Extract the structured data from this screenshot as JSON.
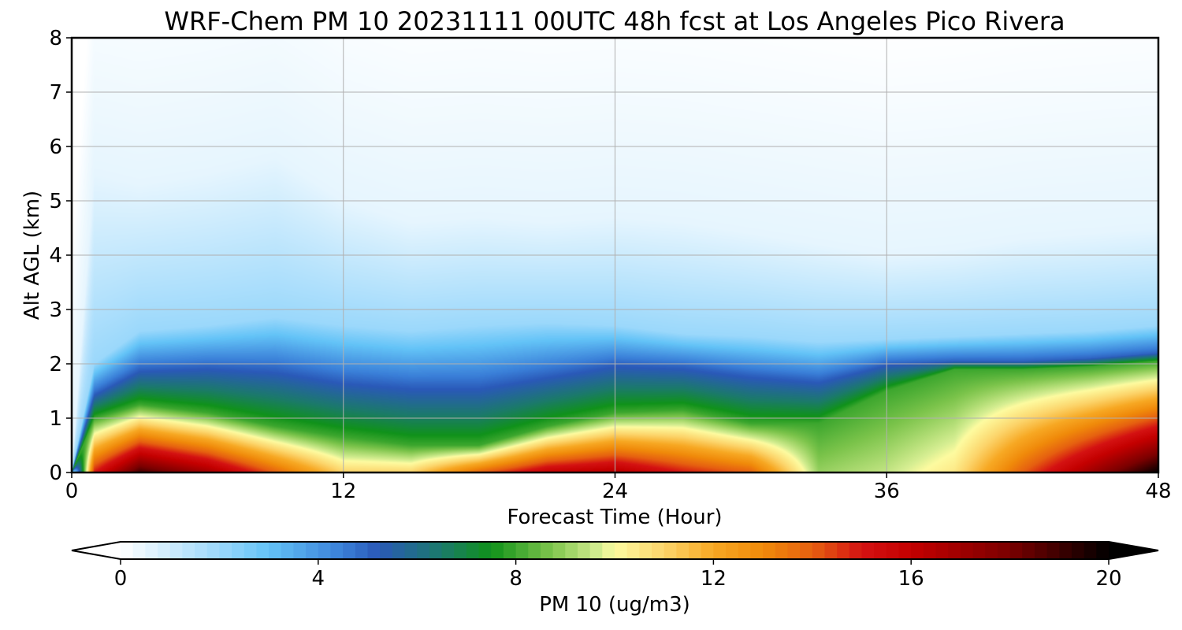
{
  "chart_data": {
    "type": "heatmap",
    "title": "WRF-Chem PM 10  20231111 00UTC 48h fcst at Los Angeles Pico Rivera",
    "xlabel": "Forecast Time (Hour)",
    "ylabel": "Alt AGL (km)",
    "xlim": [
      0,
      48
    ],
    "ylim": [
      0,
      8
    ],
    "xticks": [
      "0",
      "12",
      "24",
      "36",
      "48"
    ],
    "yticks": [
      "0",
      "1",
      "2",
      "3",
      "4",
      "5",
      "6",
      "7",
      "8"
    ],
    "grid": true,
    "colorbar": {
      "label": "PM 10  (ug/m3)",
      "range": [
        0,
        20
      ],
      "ticks": [
        "0",
        "4",
        "8",
        "12",
        "16",
        "20"
      ],
      "extend": "both",
      "stops": [
        {
          "v": 0,
          "c": "#ffffff"
        },
        {
          "v": 2,
          "c": "#9bd8fb"
        },
        {
          "v": 3,
          "c": "#63c3f7"
        },
        {
          "v": 4.5,
          "c": "#3a7fd8"
        },
        {
          "v": 5.2,
          "c": "#2a59b8"
        },
        {
          "v": 6.5,
          "c": "#1b7a6a"
        },
        {
          "v": 7.5,
          "c": "#10921a"
        },
        {
          "v": 8.7,
          "c": "#7cc44b"
        },
        {
          "v": 9.7,
          "c": "#d6ee92"
        },
        {
          "v": 10,
          "c": "#fdfba0"
        },
        {
          "v": 11,
          "c": "#fcd46a"
        },
        {
          "v": 12,
          "c": "#f7a823"
        },
        {
          "v": 13,
          "c": "#f08a0a"
        },
        {
          "v": 14,
          "c": "#e66010"
        },
        {
          "v": 15,
          "c": "#d41212"
        },
        {
          "v": 16,
          "c": "#c40000"
        },
        {
          "v": 18,
          "c": "#7a0000"
        },
        {
          "v": 20,
          "c": "#000000"
        }
      ]
    },
    "profiles": [
      {
        "t": 0,
        "surf": 0,
        "z8": 0,
        "z5": 0,
        "z2": 0,
        "ztop": 0
      },
      {
        "t": 1,
        "surf": 15,
        "z8": 1.0,
        "z5": 1.45,
        "z2": 2.0,
        "ztop": 5.5
      },
      {
        "t": 3,
        "surf": 19,
        "z8": 1.25,
        "z5": 1.9,
        "z2": 2.6,
        "ztop": 5.3
      },
      {
        "t": 6,
        "surf": 17,
        "z8": 1.1,
        "z5": 1.95,
        "z2": 2.7,
        "ztop": 5.5
      },
      {
        "t": 9,
        "surf": 14,
        "z8": 0.85,
        "z5": 1.9,
        "z2": 2.85,
        "ztop": 5.8
      },
      {
        "t": 12,
        "surf": 11,
        "z8": 0.65,
        "z5": 1.7,
        "z2": 2.7,
        "ztop": 5.0
      },
      {
        "t": 15,
        "surf": 11,
        "z8": 0.5,
        "z5": 1.6,
        "z2": 2.6,
        "ztop": 4.6
      },
      {
        "t": 18,
        "surf": 14,
        "z8": 0.5,
        "z5": 1.6,
        "z2": 2.7,
        "ztop": 4.7
      },
      {
        "t": 21,
        "surf": 16,
        "z8": 0.85,
        "z5": 1.8,
        "z2": 2.75,
        "ztop": 4.6
      },
      {
        "t": 24,
        "surf": 16.5,
        "z8": 1.1,
        "z5": 2.0,
        "z2": 2.7,
        "ztop": 4.7
      },
      {
        "t": 27,
        "surf": 15,
        "z8": 1.15,
        "z5": 1.95,
        "z2": 2.55,
        "ztop": 4.6
      },
      {
        "t": 30,
        "surf": 14,
        "z8": 0.9,
        "z5": 1.8,
        "z2": 2.5,
        "ztop": 4.4
      },
      {
        "t": 33,
        "surf": 9,
        "z8": 0.9,
        "z5": 1.7,
        "z2": 2.4,
        "ztop": 4.2
      },
      {
        "t": 36,
        "surf": 9.5,
        "z8": 1.5,
        "z5": 2.0,
        "z2": 2.45,
        "ztop": 4.0
      },
      {
        "t": 39,
        "surf": 10.5,
        "z8": 1.9,
        "z5": 2.05,
        "z2": 2.5,
        "ztop": 4.1
      },
      {
        "t": 42,
        "surf": 14,
        "z8": 1.9,
        "z5": 2.05,
        "z2": 2.55,
        "ztop": 4.3
      },
      {
        "t": 45,
        "surf": 17,
        "z8": 1.95,
        "z5": 2.1,
        "z2": 2.6,
        "ztop": 4.4
      },
      {
        "t": 48,
        "surf": 20,
        "z8": 2.05,
        "z5": 2.2,
        "z2": 2.7,
        "ztop": 4.5
      }
    ]
  }
}
